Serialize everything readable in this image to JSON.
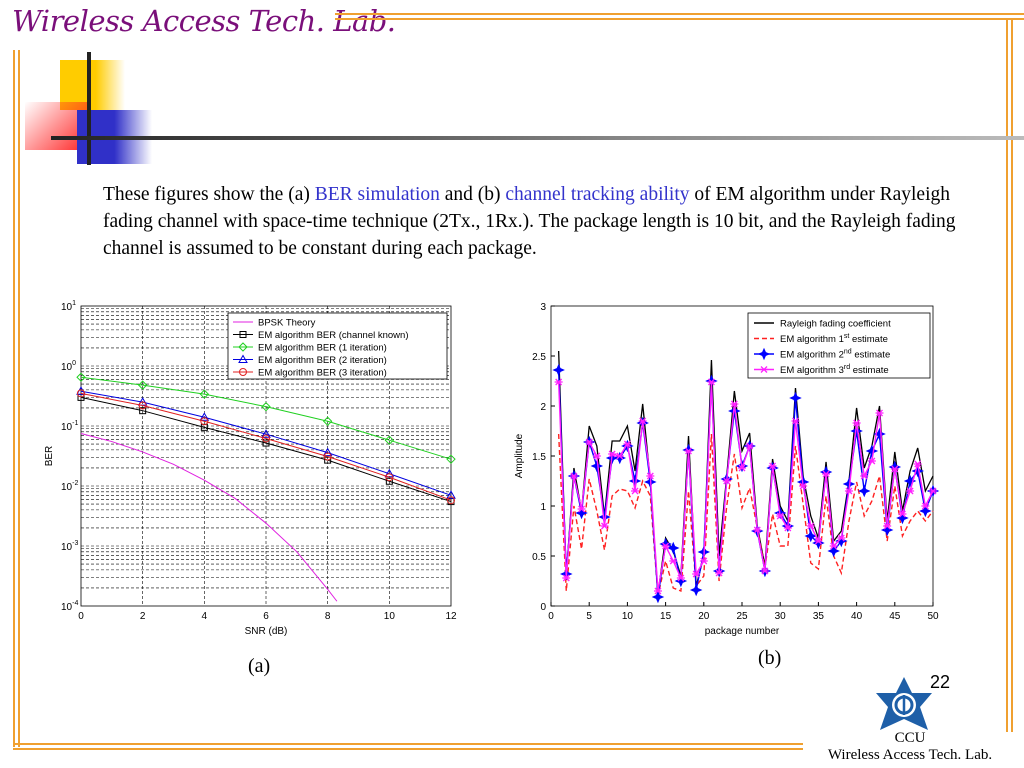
{
  "header": {
    "lab_title": "Wireless Access Tech. Lab."
  },
  "paragraph": {
    "seg1": "These figures show the (a) ",
    "hl1": "BER simulation",
    "seg2": " and (b) ",
    "hl2": "channel tracking ability",
    "seg3": " of EM algorithm under Rayleigh fading channel with space-time technique (2Tx., 1Rx.). The package length is 10 bit, and the Rayleigh fading channel is assumed to be constant during each package."
  },
  "captions": {
    "a": "(a)",
    "b": "(b)"
  },
  "page_number": "22",
  "footer": {
    "org": "CCU",
    "lab": "Wireless Access Tech. Lab."
  },
  "colors": {
    "title": "#7a0f7a",
    "border": "#f0a030",
    "highlight": "#3333cc"
  },
  "chart_data": [
    {
      "type": "line",
      "title": "",
      "xlabel": "SNR (dB)",
      "ylabel": "BER",
      "yscale": "log",
      "xlim": [
        0,
        12
      ],
      "ylim": [
        0.0001,
        10
      ],
      "xticks": [
        "0",
        "2",
        "4",
        "6",
        "8",
        "10",
        "12"
      ],
      "yticks": [
        {
          "base": "10",
          "exp": "1"
        },
        {
          "base": "10",
          "exp": "0"
        },
        {
          "base": "10",
          "exp": "-1"
        },
        {
          "base": "10",
          "exp": "-2"
        },
        {
          "base": "10",
          "exp": "-3"
        },
        {
          "base": "10",
          "exp": "-4"
        }
      ],
      "grid": true,
      "legend_position": "top-right",
      "series": [
        {
          "name": "BPSK Theory",
          "color": "#e020e0",
          "marker": "none",
          "x": [
            0,
            1,
            2,
            3,
            4,
            5,
            6,
            7,
            8,
            8.3
          ],
          "values": [
            0.075,
            0.055,
            0.037,
            0.023,
            0.0125,
            0.0062,
            0.0024,
            0.0008,
            0.00019,
            0.00012
          ]
        },
        {
          "name": "EM algorithm BER (channel known)",
          "color": "#000000",
          "marker": "square",
          "x": [
            0,
            2,
            4,
            6,
            8,
            10,
            12
          ],
          "values": [
            0.3,
            0.18,
            0.095,
            0.052,
            0.027,
            0.012,
            0.0055
          ]
        },
        {
          "name": "EM algorithm BER (1 iteration)",
          "color": "#20d020",
          "marker": "diamond",
          "x": [
            0,
            2,
            4,
            6,
            8,
            10,
            12
          ],
          "values": [
            0.65,
            0.48,
            0.34,
            0.21,
            0.12,
            0.058,
            0.028
          ]
        },
        {
          "name": "EM algorithm BER (2 iteration)",
          "color": "#0000e0",
          "marker": "triangle",
          "x": [
            0,
            2,
            4,
            6,
            8,
            10,
            12
          ],
          "values": [
            0.38,
            0.25,
            0.14,
            0.073,
            0.036,
            0.016,
            0.007
          ]
        },
        {
          "name": "EM algorithm BER (3 iteration)",
          "color": "#e02020",
          "marker": "circle",
          "x": [
            0,
            2,
            4,
            6,
            8,
            10,
            12
          ],
          "values": [
            0.35,
            0.22,
            0.12,
            0.062,
            0.031,
            0.014,
            0.0058
          ]
        }
      ]
    },
    {
      "type": "line",
      "title": "",
      "xlabel": "package number",
      "ylabel": "Amplitude",
      "xlim": [
        0,
        50
      ],
      "ylim": [
        0,
        3
      ],
      "xticks": [
        "0",
        "5",
        "10",
        "15",
        "20",
        "25",
        "30",
        "35",
        "40",
        "45",
        "50"
      ],
      "yticks": [
        "0",
        "0.5",
        "1",
        "1.5",
        "2",
        "2.5",
        "3"
      ],
      "grid": false,
      "legend_position": "top-right",
      "x_start": 1,
      "series": [
        {
          "name": "Rayleigh fading coefficient",
          "sup": "",
          "suffix": "",
          "color": "#000000",
          "dash": "",
          "marker": "none",
          "values": [
            2.55,
            0.3,
            1.38,
            0.95,
            1.8,
            1.6,
            0.9,
            1.65,
            1.65,
            1.8,
            1.35,
            2.02,
            1.25,
            0.12,
            0.68,
            0.55,
            0.3,
            1.7,
            0.2,
            0.5,
            2.46,
            0.5,
            1.3,
            2.15,
            1.55,
            1.73,
            0.8,
            0.4,
            1.47,
            1.0,
            0.85,
            2.18,
            1.3,
            0.9,
            0.68,
            1.44,
            0.65,
            0.75,
            1.25,
            1.98,
            1.38,
            1.6,
            2.0,
            0.85,
            1.54,
            0.95,
            1.35,
            1.58,
            1.15,
            1.3
          ]
        },
        {
          "name": "EM algorithm 1",
          "sup": "st",
          "suffix": " estimate",
          "color": "#ff2020",
          "dash": "5,3",
          "marker": "none",
          "values": [
            1.72,
            0.15,
            1.0,
            0.57,
            1.27,
            0.95,
            0.56,
            1.1,
            1.17,
            1.15,
            0.98,
            1.25,
            1.1,
            0.1,
            0.45,
            0.18,
            0.15,
            1.15,
            0.2,
            0.3,
            1.72,
            0.25,
            1.0,
            1.52,
            0.98,
            1.18,
            0.78,
            0.38,
            0.92,
            0.6,
            0.6,
            1.6,
            1.02,
            0.43,
            0.37,
            1.1,
            0.5,
            0.33,
            0.85,
            1.24,
            0.9,
            1.05,
            1.3,
            0.65,
            1.2,
            0.7,
            0.85,
            0.95,
            0.85,
            0.95
          ]
        },
        {
          "name": "EM algorithm 2",
          "sup": "nd",
          "suffix": " estimate",
          "color": "#0000ff",
          "dash": "",
          "marker": "star",
          "values": [
            2.36,
            0.32,
            1.3,
            0.93,
            1.64,
            1.4,
            0.89,
            1.48,
            1.48,
            1.6,
            1.25,
            1.83,
            1.24,
            0.09,
            0.62,
            0.58,
            0.25,
            1.56,
            0.16,
            0.54,
            2.25,
            0.35,
            1.27,
            1.95,
            1.4,
            1.6,
            0.75,
            0.35,
            1.38,
            0.93,
            0.8,
            2.08,
            1.24,
            0.7,
            0.63,
            1.34,
            0.55,
            0.65,
            1.22,
            1.75,
            1.15,
            1.55,
            1.72,
            0.76,
            1.39,
            0.88,
            1.25,
            1.35,
            0.95,
            1.15
          ]
        },
        {
          "name": "EM algorithm 3",
          "sup": "rd",
          "suffix": " estimate",
          "color": "#ff20ff",
          "dash": "",
          "marker": "x",
          "values": [
            2.24,
            0.28,
            1.3,
            0.97,
            1.64,
            1.5,
            0.8,
            1.52,
            1.5,
            1.62,
            1.15,
            1.85,
            1.3,
            0.15,
            0.6,
            0.45,
            0.28,
            1.55,
            0.32,
            0.45,
            2.24,
            0.33,
            1.25,
            2.02,
            1.38,
            1.6,
            0.76,
            0.35,
            1.4,
            0.9,
            0.78,
            1.85,
            1.2,
            0.8,
            0.65,
            1.32,
            0.6,
            0.68,
            1.15,
            1.83,
            1.3,
            1.45,
            1.93,
            0.8,
            1.37,
            0.92,
            1.15,
            1.42,
            1.0,
            1.15
          ]
        }
      ]
    }
  ]
}
